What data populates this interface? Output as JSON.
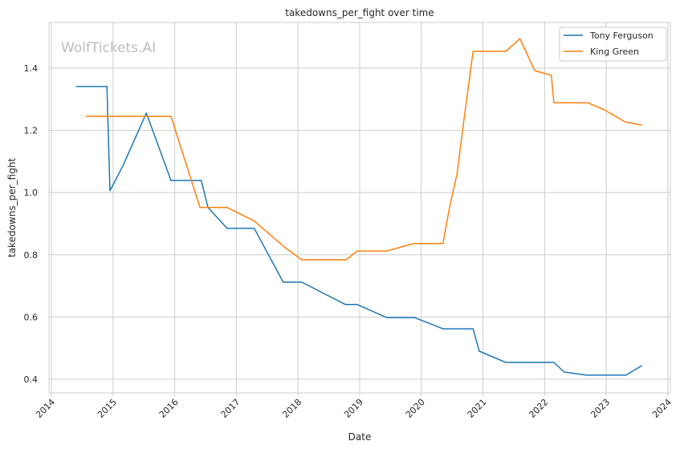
{
  "chart_data": {
    "type": "line",
    "title": "takedowns_per_fight over time",
    "xlabel": "Date",
    "ylabel": "takedowns_per_fight",
    "watermark": "WolfTickets.AI",
    "xlim": [
      2013.96,
      2024.04
    ],
    "ylim": [
      0.356,
      1.547
    ],
    "xticks": [
      2014,
      2015,
      2016,
      2017,
      2018,
      2019,
      2020,
      2021,
      2022,
      2023,
      2024
    ],
    "xtick_labels": [
      "2014",
      "2015",
      "2016",
      "2017",
      "2018",
      "2019",
      "2020",
      "2021",
      "2022",
      "2023",
      "2024"
    ],
    "yticks": [
      0.4,
      0.6,
      0.8,
      1.0,
      1.2,
      1.4
    ],
    "ytick_labels": [
      "0.4",
      "0.6",
      "0.8",
      "1.0",
      "1.2",
      "1.4"
    ],
    "grid": true,
    "legend_position": "top-right",
    "series": [
      {
        "name": "Tony Ferguson",
        "color": "#1f77b4",
        "x": [
          2014.4,
          2014.9,
          2014.95,
          2015.16,
          2015.54,
          2015.94,
          2016.43,
          2016.54,
          2016.85,
          2017.29,
          2017.76,
          2018.06,
          2018.77,
          2018.96,
          2019.44,
          2019.89,
          2020.35,
          2020.84,
          2020.94,
          2021.37,
          2022.15,
          2022.32,
          2022.68,
          2023.32,
          2023.58
        ],
        "y": [
          1.341,
          1.341,
          1.006,
          1.086,
          1.256,
          1.039,
          1.039,
          0.952,
          0.885,
          0.885,
          0.712,
          0.712,
          0.64,
          0.64,
          0.598,
          0.598,
          0.562,
          0.562,
          0.49,
          0.454,
          0.454,
          0.423,
          0.413,
          0.413,
          0.444
        ]
      },
      {
        "name": "King Green",
        "color": "#ff7f0e",
        "x": [
          2014.56,
          2015.94,
          2016.41,
          2016.85,
          2017.28,
          2017.78,
          2018.06,
          2018.78,
          2018.96,
          2019.44,
          2019.87,
          2020.35,
          2020.46,
          2020.58,
          2020.69,
          2020.84,
          2021.37,
          2021.6,
          2021.84,
          2022.11,
          2022.15,
          2022.7,
          2022.97,
          2023.31,
          2023.58
        ],
        "y": [
          1.245,
          1.245,
          0.952,
          0.952,
          0.91,
          0.825,
          0.784,
          0.784,
          0.812,
          0.812,
          0.836,
          0.836,
          0.954,
          1.06,
          1.232,
          1.454,
          1.454,
          1.495,
          1.392,
          1.377,
          1.289,
          1.289,
          1.266,
          1.227,
          1.217
        ]
      }
    ]
  }
}
